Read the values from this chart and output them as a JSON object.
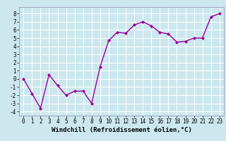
{
  "x": [
    0,
    1,
    2,
    3,
    4,
    5,
    6,
    7,
    8,
    9,
    10,
    11,
    12,
    13,
    14,
    15,
    16,
    17,
    18,
    19,
    20,
    21,
    22,
    23
  ],
  "y": [
    0.0,
    -1.8,
    -3.6,
    0.5,
    -0.8,
    -2.0,
    -1.5,
    -1.5,
    -3.0,
    1.5,
    4.7,
    5.7,
    5.6,
    6.6,
    7.0,
    6.5,
    5.7,
    5.5,
    4.5,
    4.6,
    5.0,
    5.0,
    7.6,
    8.0
  ],
  "line_color": "#990099",
  "marker": "D",
  "markersize": 2.0,
  "linewidth": 1.0,
  "bg_color": "#cce8ee",
  "grid_color": "#ffffff",
  "xlabel": "Windchill (Refroidissement éolien,°C)",
  "xlim": [
    -0.5,
    23.5
  ],
  "ylim": [
    -4.5,
    8.8
  ],
  "yticks": [
    -4,
    -3,
    -2,
    -1,
    0,
    1,
    2,
    3,
    4,
    5,
    6,
    7,
    8
  ],
  "xticks": [
    0,
    1,
    2,
    3,
    4,
    5,
    6,
    7,
    8,
    9,
    10,
    11,
    12,
    13,
    14,
    15,
    16,
    17,
    18,
    19,
    20,
    21,
    22,
    23
  ],
  "tick_fontsize": 5.5,
  "xlabel_fontsize": 6.5,
  "spine_color": "#8888aa"
}
